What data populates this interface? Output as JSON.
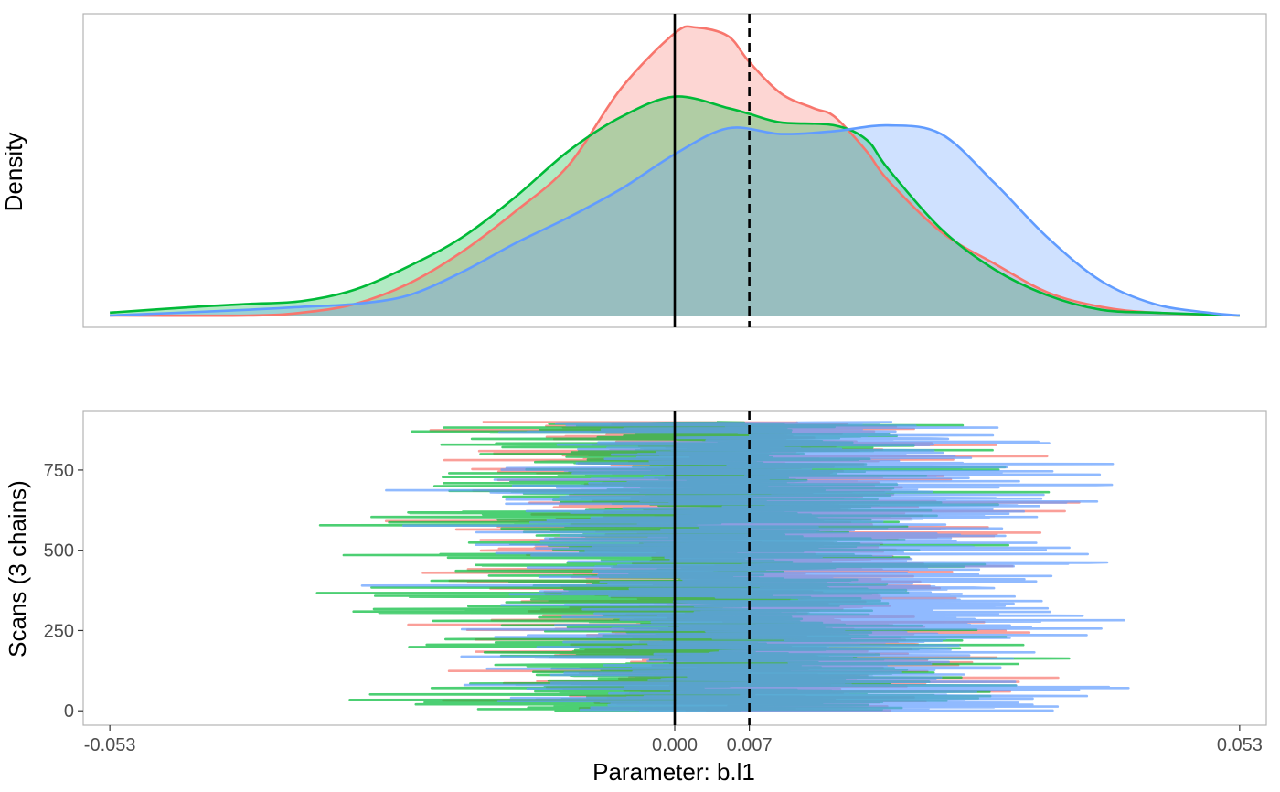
{
  "chart_data": [
    {
      "type": "area",
      "panel": "density",
      "xlabel": "",
      "ylabel": "Density",
      "xlim": [
        -0.0555,
        0.0555
      ],
      "ylim": [
        0,
        1.06
      ],
      "y_ticks_shown": false,
      "grid": false,
      "reference_lines": [
        {
          "x": 0.0,
          "style": "solid"
        },
        {
          "x": 0.007,
          "style": "dashed"
        }
      ],
      "series": [
        {
          "color": "#F8766D",
          "fill": "#F8766D",
          "x": [
            -0.053,
            -0.04,
            -0.035,
            -0.03,
            -0.025,
            -0.02,
            -0.015,
            -0.01,
            -0.005,
            0.0,
            0.002,
            0.005,
            0.007,
            0.01,
            0.013,
            0.015,
            0.018,
            0.02,
            0.025,
            0.03,
            0.035,
            0.04,
            0.045,
            0.053
          ],
          "y": [
            0.0,
            0.0,
            0.01,
            0.04,
            0.11,
            0.22,
            0.36,
            0.52,
            0.79,
            0.98,
            1.0,
            0.97,
            0.88,
            0.77,
            0.72,
            0.69,
            0.57,
            0.47,
            0.29,
            0.18,
            0.08,
            0.03,
            0.01,
            0.0
          ]
        },
        {
          "color": "#00BA38",
          "fill": "#00BA38",
          "x": [
            -0.053,
            -0.045,
            -0.04,
            -0.035,
            -0.03,
            -0.025,
            -0.02,
            -0.015,
            -0.01,
            -0.005,
            0.0,
            0.005,
            0.007,
            0.01,
            0.015,
            0.018,
            0.02,
            0.025,
            0.03,
            0.035,
            0.04,
            0.045,
            0.053
          ],
          "y": [
            0.01,
            0.03,
            0.04,
            0.05,
            0.09,
            0.17,
            0.27,
            0.41,
            0.57,
            0.69,
            0.76,
            0.72,
            0.7,
            0.67,
            0.66,
            0.61,
            0.51,
            0.3,
            0.16,
            0.07,
            0.02,
            0.01,
            0.0
          ]
        },
        {
          "color": "#619CFF",
          "fill": "#619CFF",
          "x": [
            -0.053,
            -0.04,
            -0.035,
            -0.03,
            -0.025,
            -0.02,
            -0.015,
            -0.01,
            -0.005,
            0.0,
            0.005,
            0.01,
            0.015,
            0.02,
            0.025,
            0.03,
            0.035,
            0.04,
            0.045,
            0.05,
            0.053
          ],
          "y": [
            0.0,
            0.02,
            0.03,
            0.04,
            0.07,
            0.15,
            0.25,
            0.34,
            0.44,
            0.56,
            0.65,
            0.63,
            0.64,
            0.66,
            0.63,
            0.46,
            0.27,
            0.12,
            0.04,
            0.01,
            0.0
          ]
        }
      ]
    },
    {
      "type": "line",
      "panel": "trace",
      "xlabel": "Parameter: b.l1",
      "ylabel": "Scans (3 chains)",
      "xlim": [
        -0.0555,
        0.0555
      ],
      "ylim": [
        -45,
        935
      ],
      "x_ticks": [
        -0.053,
        0.0,
        0.007,
        0.053
      ],
      "x_tick_labels": [
        "-0.053",
        "0.000",
        "0.007",
        "0.053"
      ],
      "y_ticks": [
        0,
        250,
        500,
        750
      ],
      "y_tick_labels": [
        "0",
        "250",
        "500",
        "750"
      ],
      "grid": false,
      "orientation": "horizontal",
      "scans": 900,
      "reference_lines": [
        {
          "x": 0.0,
          "style": "solid"
        },
        {
          "x": 0.007,
          "style": "dashed"
        }
      ],
      "series": [
        {
          "color": "#F8766D",
          "mean": 0.006,
          "sd": 0.011,
          "xmin": -0.03,
          "xmax": 0.046,
          "seed": 11
        },
        {
          "color": "#00BA38",
          "mean": 0.002,
          "sd": 0.012,
          "xmin": -0.053,
          "xmax": 0.037,
          "seed": 23
        },
        {
          "color": "#619CFF",
          "mean": 0.011,
          "sd": 0.013,
          "xmin": -0.044,
          "xmax": 0.053,
          "seed": 37
        }
      ]
    }
  ]
}
